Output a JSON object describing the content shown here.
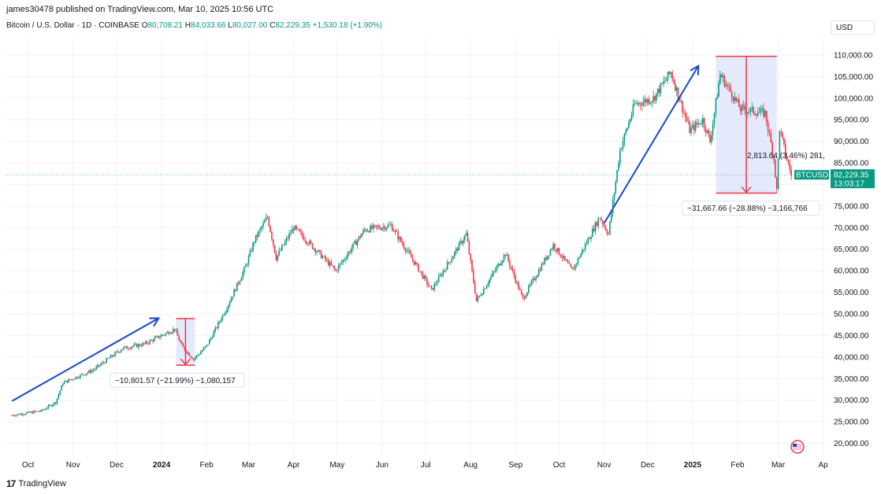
{
  "header": {
    "publisher": "james30478 published on TradingView.com, Mar 10, 2025 10:56 UTC",
    "symbol": "Bitcoin / U.S. Dollar · 1D · COINBASE",
    "ohlc": {
      "open_label": "O",
      "open": "80,708.21",
      "high_label": "H",
      "high": "84,033.66",
      "low_label": "L",
      "low": "80,027.00",
      "close_label": "C",
      "close": "82,229.35",
      "change": "+1,530.18 (+1.90%)"
    },
    "currency": "USD"
  },
  "footer": {
    "logo_mark": "17",
    "logo_text": "TradingView"
  },
  "colors": {
    "up": "#089981",
    "down": "#f23645",
    "arrow": "#1848cc",
    "measure_fill": "#dfe6fb",
    "measure_line": "#f23645"
  },
  "chart_data": {
    "type": "candlestick",
    "symbol": "BTCUSD",
    "y_ticks": [
      20000,
      25000,
      30000,
      35000,
      40000,
      45000,
      50000,
      55000,
      60000,
      65000,
      70000,
      75000,
      80000,
      85000,
      90000,
      95000,
      100000,
      105000,
      110000
    ],
    "y_tick_labels": [
      "20,000.00",
      "25,000.00",
      "30,000.00",
      "35,000.00",
      "40,000.00",
      "45,000.00",
      "50,000.00",
      "55,000.00",
      "60,000.00",
      "65,000.00",
      "70,000.00",
      "75,000.00",
      "80,000.00",
      "85,000.00",
      "90,000.00",
      "95,000.00",
      "100,000.00",
      "105,000.00",
      "110,000.00"
    ],
    "ylim": [
      17000,
      114000
    ],
    "x_ticks": [
      {
        "label": "Oct",
        "date": "2023-10-01",
        "bold": false
      },
      {
        "label": "Nov",
        "date": "2023-11-01",
        "bold": false
      },
      {
        "label": "Dec",
        "date": "2023-12-01",
        "bold": false
      },
      {
        "label": "2024",
        "date": "2024-01-01",
        "bold": true
      },
      {
        "label": "Feb",
        "date": "2024-02-01",
        "bold": false
      },
      {
        "label": "Mar",
        "date": "2024-03-01",
        "bold": false
      },
      {
        "label": "Apr",
        "date": "2024-04-01",
        "bold": false
      },
      {
        "label": "May",
        "date": "2024-05-01",
        "bold": false
      },
      {
        "label": "Jun",
        "date": "2024-06-01",
        "bold": false
      },
      {
        "label": "Jul",
        "date": "2024-07-01",
        "bold": false
      },
      {
        "label": "Aug",
        "date": "2024-08-01",
        "bold": false
      },
      {
        "label": "Sep",
        "date": "2024-09-01",
        "bold": false
      },
      {
        "label": "Oct",
        "date": "2024-10-01",
        "bold": false
      },
      {
        "label": "Nov",
        "date": "2024-11-01",
        "bold": false
      },
      {
        "label": "Dec",
        "date": "2024-12-01",
        "bold": false
      },
      {
        "label": "2025",
        "date": "2025-01-01",
        "bold": true
      },
      {
        "label": "Feb",
        "date": "2025-02-01",
        "bold": false
      },
      {
        "label": "Mar",
        "date": "2025-03-01",
        "bold": false
      },
      {
        "label": "Ap",
        "date": "2025-04-01",
        "bold": false
      }
    ],
    "price_path": [
      [
        "2023-09-20",
        26500
      ],
      [
        "2023-10-10",
        27500
      ],
      [
        "2023-10-20",
        29500
      ],
      [
        "2023-10-25",
        34000
      ],
      [
        "2023-11-15",
        37000
      ],
      [
        "2023-12-05",
        42000
      ],
      [
        "2023-12-20",
        43000
      ],
      [
        "2024-01-10",
        46500
      ],
      [
        "2024-01-15",
        42500
      ],
      [
        "2024-01-23",
        39500
      ],
      [
        "2024-02-01",
        42500
      ],
      [
        "2024-02-15",
        51500
      ],
      [
        "2024-02-28",
        61000
      ],
      [
        "2024-03-05",
        67000
      ],
      [
        "2024-03-14",
        72500
      ],
      [
        "2024-03-20",
        63000
      ],
      [
        "2024-04-01",
        70000
      ],
      [
        "2024-04-13",
        66000
      ],
      [
        "2024-04-30",
        60000
      ],
      [
        "2024-05-20",
        69500
      ],
      [
        "2024-06-07",
        70500
      ],
      [
        "2024-06-24",
        61500
      ],
      [
        "2024-07-05",
        55500
      ],
      [
        "2024-07-29",
        68500
      ],
      [
        "2024-08-05",
        53000
      ],
      [
        "2024-08-25",
        64000
      ],
      [
        "2024-09-06",
        53500
      ],
      [
        "2024-09-27",
        66000
      ],
      [
        "2024-10-10",
        60000
      ],
      [
        "2024-10-29",
        72500
      ],
      [
        "2024-11-04",
        68500
      ],
      [
        "2024-11-12",
        88000
      ],
      [
        "2024-11-22",
        98500
      ],
      [
        "2024-12-05",
        100000
      ],
      [
        "2024-12-17",
        106000
      ],
      [
        "2024-12-30",
        92500
      ],
      [
        "2025-01-08",
        95000
      ],
      [
        "2025-01-13",
        90000
      ],
      [
        "2025-01-20",
        105500
      ],
      [
        "2025-01-28",
        101000
      ],
      [
        "2025-02-03",
        97500
      ],
      [
        "2025-02-20",
        96500
      ],
      [
        "2025-02-26",
        86000
      ],
      [
        "2025-02-28",
        78500
      ],
      [
        "2025-03-02",
        93000
      ],
      [
        "2025-03-06",
        87000
      ],
      [
        "2025-03-10",
        82229
      ]
    ],
    "annotations": {
      "arrows": [
        {
          "from": [
            "2023-09-20",
            29800
          ],
          "to": [
            "2023-12-30",
            49000
          ]
        },
        {
          "from": [
            "2024-11-01",
            71000
          ],
          "to": [
            "2025-01-05",
            107500
          ]
        }
      ],
      "measures": [
        {
          "x1": "2024-01-11",
          "x2": "2024-01-24",
          "top": 48900,
          "bottom": 38100,
          "label": "−10,801.57 (−21.99%) −1,080,157"
        },
        {
          "x1": "2025-01-17",
          "x2": "2025-02-28",
          "top": 109700,
          "bottom": 78000,
          "label": "−31,667.66 (−28.88%) −3,166,766"
        }
      ],
      "partial_label": "2,813.64 (3.46%) 281,"
    },
    "last_price": {
      "label": "BTCUSD",
      "value": 82229.35,
      "value_label": "82,229.35",
      "countdown": "13:03:17"
    }
  }
}
